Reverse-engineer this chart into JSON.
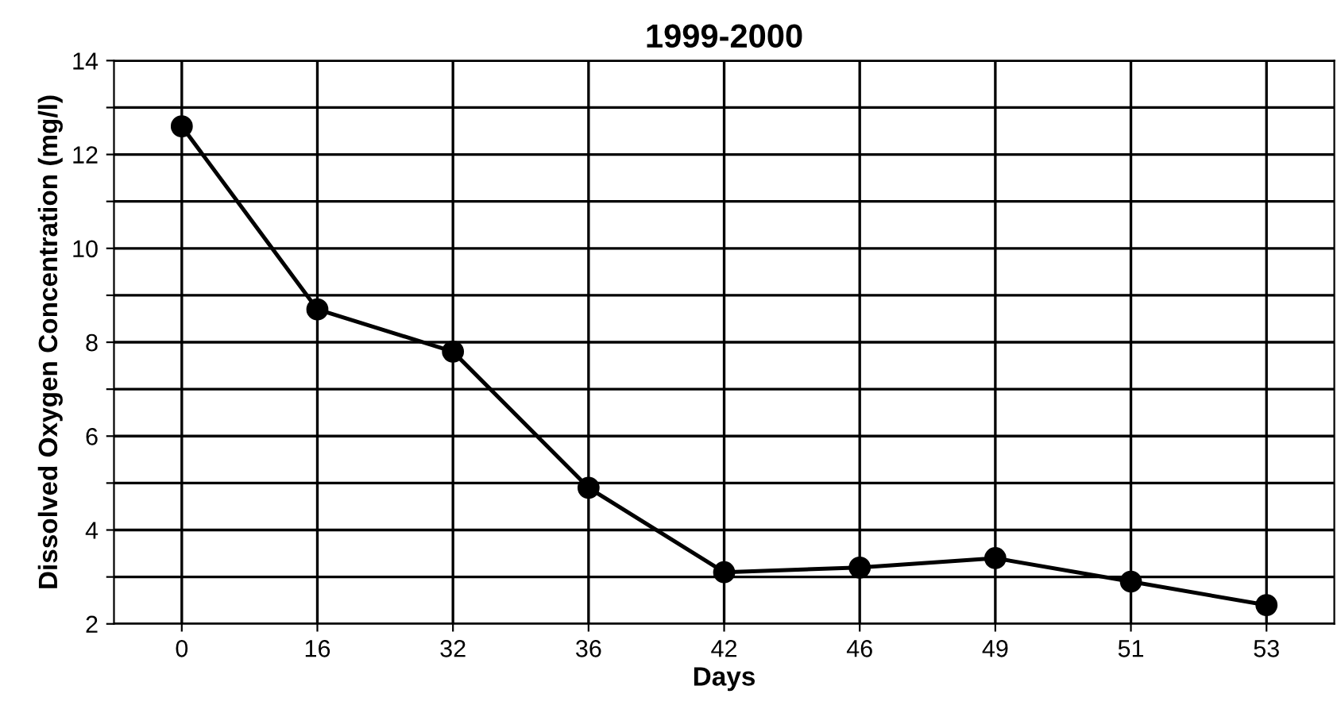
{
  "chart_data": {
    "type": "line",
    "title": "1999-2000",
    "xlabel": "Days",
    "ylabel": "Dissolved Oxygen Concentration (mg/l)",
    "categories": [
      "0",
      "16",
      "32",
      "36",
      "42",
      "46",
      "49",
      "51",
      "53"
    ],
    "series": [
      {
        "color": "#000000",
        "values": [
          12.6,
          8.7,
          7.8,
          4.9,
          3.1,
          3.2,
          3.4,
          2.9,
          2.4
        ]
      }
    ],
    "ylim": [
      2,
      14
    ],
    "yticks": [
      2,
      {
        "value": 3,
        "label": null
      },
      4,
      {
        "value": 5,
        "label": null
      },
      6,
      {
        "value": 7,
        "label": null
      },
      8,
      {
        "value": 9,
        "label": null
      },
      10,
      {
        "value": 11,
        "label": null
      },
      12,
      {
        "value": 13,
        "label": null
      },
      14
    ],
    "grid": true,
    "marker": "circle",
    "line_style": "solid",
    "legend": false
  }
}
